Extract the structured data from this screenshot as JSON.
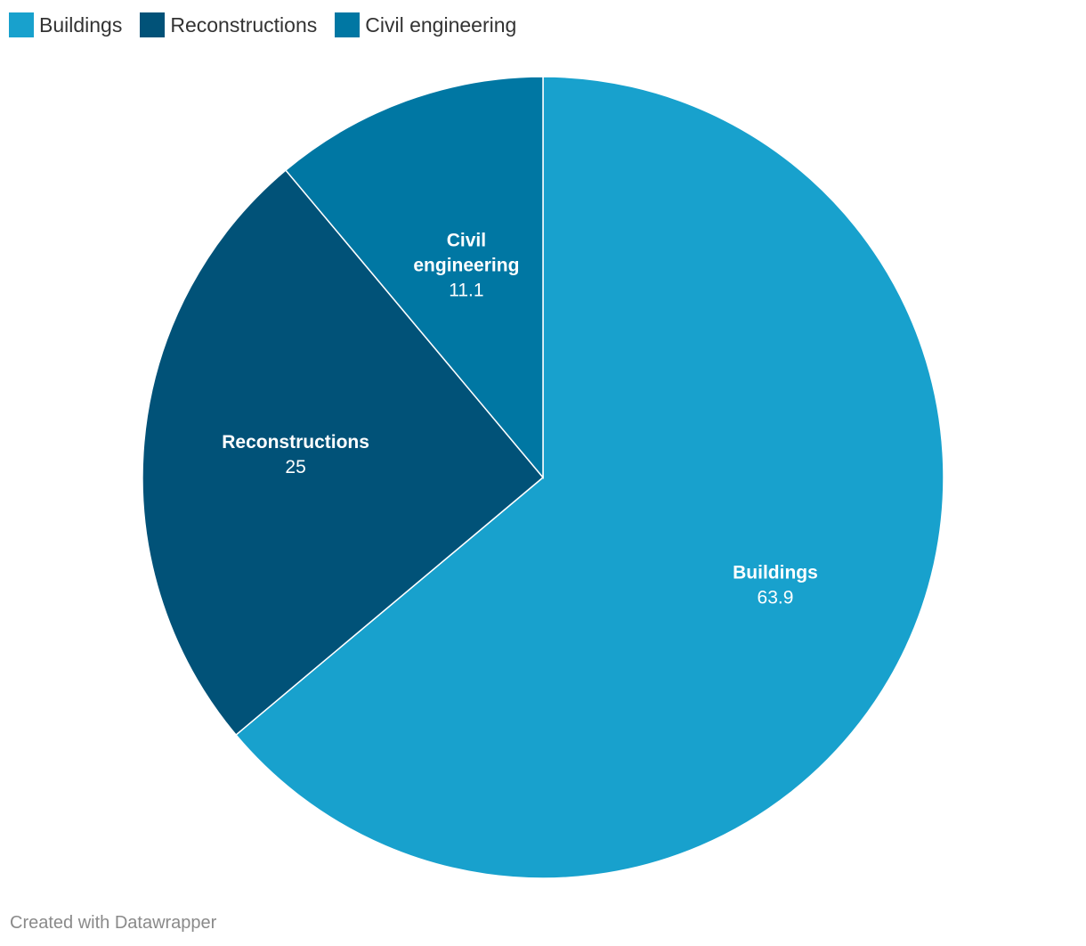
{
  "chart_data": {
    "type": "pie",
    "title": "",
    "legend_position": "top-left",
    "slices": [
      {
        "name": "Buildings",
        "label_lines": [
          "Buildings"
        ],
        "value": 63.9,
        "value_label": "63.9",
        "color": "#18a1cd"
      },
      {
        "name": "Reconstructions",
        "label_lines": [
          "Reconstructions"
        ],
        "value": 25,
        "value_label": "25",
        "color": "#015278"
      },
      {
        "name": "Civil engineering",
        "label_lines": [
          "Civil",
          "engineering"
        ],
        "value": 11.1,
        "value_label": "11.1",
        "color": "#0077a3"
      }
    ]
  },
  "footer": {
    "credit": "Created with Datawrapper"
  }
}
